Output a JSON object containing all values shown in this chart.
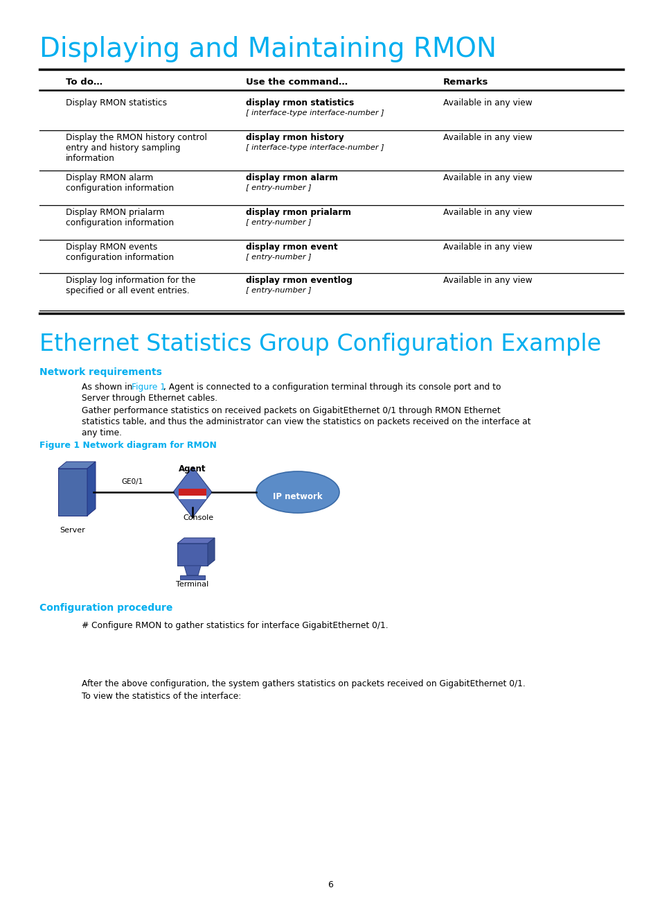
{
  "title1": "Displaying and Maintaining RMON",
  "title2": "Ethernet Statistics Group Configuration Example",
  "section1_header": "Network requirements",
  "section2_header": "Configuration procedure",
  "table_headers": [
    "To do…",
    "Use the command…",
    "Remarks"
  ],
  "table_rows": [
    {
      "col1": "Display RMON statistics",
      "col2_bold": "display rmon statistics",
      "col2_italic": "[ interface-type interface-number ]",
      "col3": "Available in any view"
    },
    {
      "col1": "Display the RMON history control\nentry and history sampling\ninformation",
      "col2_bold": "display rmon history",
      "col2_italic": "[ interface-type interface-number ]",
      "col3": "Available in any view"
    },
    {
      "col1": "Display RMON alarm\nconfiguration information",
      "col2_bold": "display rmon alarm",
      "col2_italic": "[ entry-number ]",
      "col3": "Available in any view"
    },
    {
      "col1": "Display RMON prialarm\nconfiguration information",
      "col2_bold": "display rmon prialarm",
      "col2_italic": "[ entry-number ]",
      "col3": "Available in any view"
    },
    {
      "col1": "Display RMON events\nconfiguration information",
      "col2_bold": "display rmon event",
      "col2_italic": "[ entry-number ]",
      "col3": "Available in any view"
    },
    {
      "col1": "Display log information for the\nspecified or all event entries.",
      "col2_bold": "display rmon eventlog",
      "col2_italic": "[ entry-number ]",
      "col3": "Available in any view"
    }
  ],
  "para1_pre": "As shown in ",
  "para1_link": "Figure 1",
  "para1_post": ", Agent is connected to a configuration terminal through its console port and to",
  "para1_line2": "Server through Ethernet cables.",
  "para2_line1": "Gather performance statistics on received packets on GigabitEthernet 0/1 through RMON Ethernet",
  "para2_line2": "statistics table, and thus the administrator can view the statistics on packets received on the interface at",
  "para2_line3": "any time.",
  "fig_caption": "Figure 1 Network diagram for RMON",
  "config_text": "# Configure RMON to gather statistics for interface GigabitEthernet 0/1.",
  "after_line1": "After the above configuration, the system gathers statistics on packets received on GigabitEthernet 0/1.",
  "after_line2": "To view the statistics of the interface:",
  "page_number": "6",
  "cyan_color": "#00AEEF",
  "black": "#000000",
  "bg_color": "#FFFFFF"
}
